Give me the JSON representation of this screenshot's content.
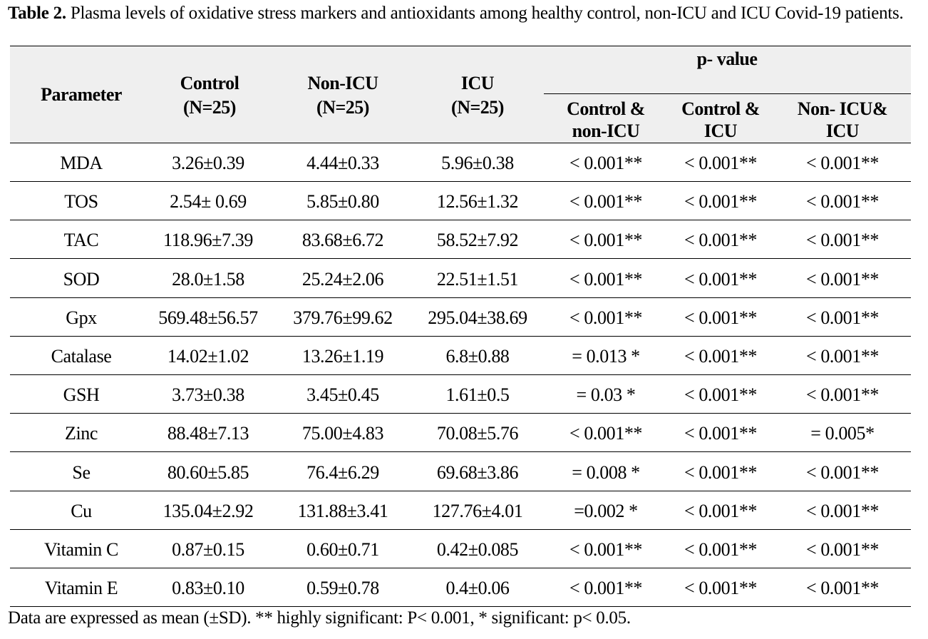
{
  "caption": {
    "label": "Table 2.",
    "text": " Plasma levels of oxidative stress markers and antioxidants among healthy control, non-ICU and ICU Covid-19 patients."
  },
  "headers": {
    "parameter": "Parameter",
    "control": [
      "Control",
      "(N=25)"
    ],
    "non_icu": [
      "Non-ICU",
      "(N=25)"
    ],
    "icu": [
      "ICU",
      "(N=25)"
    ],
    "p_value": "p- value",
    "p_sub": [
      [
        "Control &",
        "non-ICU"
      ],
      [
        "Control &",
        "ICU"
      ],
      [
        "Non- ICU&",
        "ICU"
      ]
    ]
  },
  "rows": [
    {
      "parameter": "MDA",
      "control": "3.26±0.39",
      "non_icu": "4.44±0.33",
      "icu": "5.96±0.38",
      "p1": "< 0.001**",
      "p2": "< 0.001**",
      "p3": "< 0.001**"
    },
    {
      "parameter": "TOS",
      "control": "2.54± 0.69",
      "non_icu": "5.85±0.80",
      "icu": "12.56±1.32",
      "p1": "< 0.001**",
      "p2": "< 0.001**",
      "p3": "< 0.001**"
    },
    {
      "parameter": "TAC",
      "control": "118.96±7.39",
      "non_icu": "83.68±6.72",
      "icu": "58.52±7.92",
      "p1": "< 0.001**",
      "p2": "< 0.001**",
      "p3": "< 0.001**"
    },
    {
      "parameter": "SOD",
      "control": "28.0±1.58",
      "non_icu": "25.24±2.06",
      "icu": "22.51±1.51",
      "p1": "< 0.001**",
      "p2": "< 0.001**",
      "p3": "< 0.001**"
    },
    {
      "parameter": "Gpx",
      "control": "569.48±56.57",
      "non_icu": "379.76±99.62",
      "icu": "295.04±38.69",
      "p1": "< 0.001**",
      "p2": "< 0.001**",
      "p3": "< 0.001**"
    },
    {
      "parameter": "Catalase",
      "control": "14.02±1.02",
      "non_icu": "13.26±1.19",
      "icu": "6.8±0.88",
      "p1": "= 0.013 *",
      "p2": "< 0.001**",
      "p3": "< 0.001**"
    },
    {
      "parameter": "GSH",
      "control": "3.73±0.38",
      "non_icu": "3.45±0.45",
      "icu": "1.61±0.5",
      "p1": "= 0.03 *",
      "p2": "< 0.001**",
      "p3": "< 0.001**"
    },
    {
      "parameter": "Zinc",
      "control": "88.48±7.13",
      "non_icu": "75.00±4.83",
      "icu": "70.08±5.76",
      "p1": "< 0.001**",
      "p2": "< 0.001**",
      "p3": "= 0.005*"
    },
    {
      "parameter": "Se",
      "control": "80.60±5.85",
      "non_icu": "76.4±6.29",
      "icu": "69.68±3.86",
      "p1": "= 0.008 *",
      "p2": "< 0.001**",
      "p3": "< 0.001**"
    },
    {
      "parameter": "Cu",
      "control": "135.04±2.92",
      "non_icu": "131.88±3.41",
      "icu": "127.76±4.01",
      "p1": "=0.002 *",
      "p2": "< 0.001**",
      "p3": "< 0.001**"
    },
    {
      "parameter": "Vitamin C",
      "control": "0.87±0.15",
      "non_icu": "0.60±0.71",
      "icu": "0.42±0.085",
      "p1": "< 0.001**",
      "p2": "< 0.001**",
      "p3": "< 0.001**"
    },
    {
      "parameter": "Vitamin E",
      "control": "0.83±0.10",
      "non_icu": "0.59±0.78",
      "icu": "0.4±0.06",
      "p1": "< 0.001**",
      "p2": "< 0.001**",
      "p3": "< 0.001**"
    }
  ],
  "footnote": "Data are expressed as mean (±SD). ** highly significant: P< 0.001, * significant: p< 0.05."
}
